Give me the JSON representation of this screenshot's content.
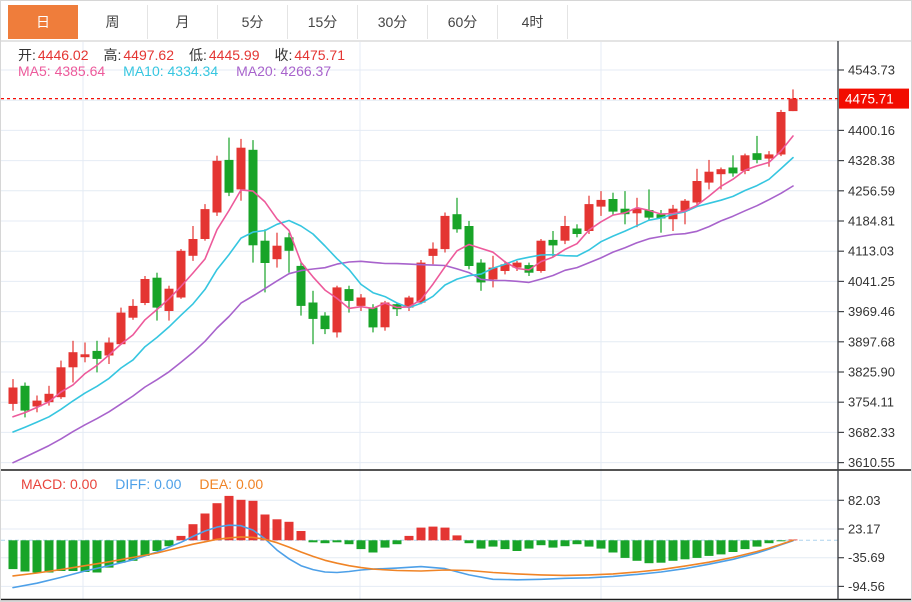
{
  "tabs": [
    {
      "label": "日",
      "name": "tab-day",
      "active": true
    },
    {
      "label": "周",
      "name": "tab-week",
      "active": false
    },
    {
      "label": "月",
      "name": "tab-month",
      "active": false
    },
    {
      "label": "5分",
      "name": "tab-5min",
      "active": false
    },
    {
      "label": "15分",
      "name": "tab-15min",
      "active": false
    },
    {
      "label": "30分",
      "name": "tab-30min",
      "active": false
    },
    {
      "label": "60分",
      "name": "tab-60min",
      "active": false
    },
    {
      "label": "4时",
      "name": "tab-4hour",
      "active": false
    }
  ],
  "ohlc": [
    {
      "label": "开:",
      "value": "4446.02"
    },
    {
      "label": "高:",
      "value": "4497.62"
    },
    {
      "label": "低:",
      "value": "4445.99"
    },
    {
      "label": "收:",
      "value": "4475.71"
    }
  ],
  "ma_legend": [
    {
      "text": "MA5: 4385.64",
      "color": "#ed5a9b"
    },
    {
      "text": "MA10: 4334.34",
      "color": "#36c6e0"
    },
    {
      "text": "MA20: 4266.37",
      "color": "#a863cc"
    }
  ],
  "macd_legend": [
    {
      "text": "MACD: 0.00",
      "color": "#e8443c"
    },
    {
      "text": "DIFF: 0.00",
      "color": "#4da0e8"
    },
    {
      "text": "DEA: 0.00",
      "color": "#f08426"
    }
  ],
  "last_price_label": "4475.71",
  "colors": {
    "up": "#e43532",
    "down": "#18a428",
    "ma5": "#ed5a9b",
    "ma10": "#36c6e0",
    "ma20": "#a863cc",
    "diff": "#4da0e8",
    "dea": "#f08426",
    "grid": "#e4ebf4",
    "axis_line": "#42454a",
    "panel_border": "#1c1c1c",
    "tab_active_bg": "#ef7d3b",
    "value_red": "#e43532",
    "label_text": "#333333",
    "zero_line": "#aed4ee",
    "price_tag_bg": "#f20c00",
    "current_price_line": "#f50d05"
  },
  "chart_data": [
    {
      "type": "candlestick",
      "title": "日K线 (daily candles, OHLC)",
      "y_axis_ticks": [
        4543.73,
        4400.16,
        4328.38,
        4256.59,
        4184.81,
        4113.03,
        4041.25,
        3969.46,
        3897.68,
        3825.9,
        3754.11,
        3682.33,
        3610.55
      ],
      "y_axis_hidden_tick": 4471.94,
      "current_price": 4475.71,
      "grid": true,
      "legend_position": "top-left",
      "ma_periods": [
        5,
        10,
        20
      ],
      "ma_last_values": {
        "ma5": 4385.64,
        "ma10": 4334.34,
        "ma20": 4266.37
      },
      "prehistory_closes_for_ma": [
        3455,
        3470,
        3485,
        3500,
        3515,
        3530,
        3545,
        3560,
        3575,
        3590,
        3605,
        3620,
        3635,
        3648,
        3660,
        3672,
        3684,
        3696,
        3708,
        3720
      ],
      "candles_ohlc": [
        [
          3750,
          3809,
          3734,
          3789
        ],
        [
          3793,
          3801,
          3718,
          3734
        ],
        [
          3744,
          3770,
          3730,
          3758
        ],
        [
          3754,
          3793,
          3746,
          3774
        ],
        [
          3766,
          3853,
          3762,
          3837
        ],
        [
          3837,
          3900,
          3801,
          3873
        ],
        [
          3861,
          3896,
          3849,
          3868
        ],
        [
          3876,
          3900,
          3825,
          3857
        ],
        [
          3865,
          3908,
          3845,
          3896
        ],
        [
          3892,
          3979,
          3890,
          3967
        ],
        [
          3955,
          3999,
          3950,
          3983
        ],
        [
          3990,
          4054,
          3985,
          4047
        ],
        [
          4050,
          4062,
          3948,
          3979
        ],
        [
          3971,
          4031,
          3948,
          4024
        ],
        [
          4003,
          4118,
          4000,
          4114
        ],
        [
          4102,
          4173,
          4090,
          4142
        ],
        [
          4142,
          4225,
          4138,
          4213
        ],
        [
          4205,
          4340,
          4197,
          4328
        ],
        [
          4330,
          4383,
          4244,
          4252
        ],
        [
          4260,
          4380,
          4233,
          4359
        ],
        [
          4354,
          4377,
          4086,
          4127
        ],
        [
          4138,
          4165,
          4015,
          4085
        ],
        [
          4094,
          4157,
          4074,
          4126
        ],
        [
          4146,
          4157,
          4062,
          4114
        ],
        [
          4078,
          4086,
          3960,
          3983
        ],
        [
          3991,
          4019,
          3892,
          3952
        ],
        [
          3960,
          3968,
          3916,
          3928
        ],
        [
          3920,
          4031,
          3908,
          4027
        ],
        [
          4023,
          4031,
          3967,
          3995
        ],
        [
          3983,
          4011,
          3971,
          4003
        ],
        [
          3979,
          3987,
          3920,
          3932
        ],
        [
          3932,
          3995,
          3924,
          3991
        ],
        [
          3987,
          3991,
          3959,
          3975
        ],
        [
          3979,
          4007,
          3971,
          4003
        ],
        [
          3991,
          4092,
          3987,
          4086
        ],
        [
          4102,
          4134,
          4082,
          4119
        ],
        [
          4118,
          4205,
          4110,
          4197
        ],
        [
          4201,
          4240,
          4157,
          4165
        ],
        [
          4173,
          4185,
          4070,
          4078
        ],
        [
          4086,
          4094,
          4019,
          4039
        ],
        [
          4046,
          4102,
          4027,
          4074
        ],
        [
          4066,
          4090,
          4058,
          4082
        ],
        [
          4074,
          4090,
          4066,
          4086
        ],
        [
          4080,
          4086,
          4054,
          4062
        ],
        [
          4066,
          4142,
          4062,
          4138
        ],
        [
          4140,
          4161,
          4098,
          4127
        ],
        [
          4138,
          4197,
          4130,
          4173
        ],
        [
          4167,
          4177,
          4146,
          4154
        ],
        [
          4161,
          4245,
          4154,
          4225
        ],
        [
          4219,
          4256,
          4197,
          4235
        ],
        [
          4237,
          4252,
          4199,
          4207
        ],
        [
          4214,
          4256,
          4177,
          4201
        ],
        [
          4203,
          4240,
          4170,
          4214
        ],
        [
          4211,
          4260,
          4185,
          4193
        ],
        [
          4201,
          4211,
          4157,
          4191
        ],
        [
          4189,
          4223,
          4161,
          4214
        ],
        [
          4209,
          4237,
          4177,
          4233
        ],
        [
          4229,
          4309,
          4221,
          4280
        ],
        [
          4276,
          4330,
          4260,
          4302
        ],
        [
          4296,
          4312,
          4260,
          4308
        ],
        [
          4312,
          4341,
          4290,
          4298
        ],
        [
          4304,
          4345,
          4296,
          4341
        ],
        [
          4346,
          4387,
          4322,
          4330
        ],
        [
          4333,
          4351,
          4314,
          4343
        ],
        [
          4343,
          4449,
          4339,
          4444
        ],
        [
          4446.02,
          4497.62,
          4445.99,
          4475.71
        ]
      ]
    },
    {
      "type": "bar",
      "title": "MACD",
      "y_axis_ticks": [
        82.03,
        23.17,
        -35.69,
        -94.56
      ],
      "zero_line": 0,
      "histogram": [
        -59,
        -64,
        -66,
        -66,
        -63,
        -63,
        -65,
        -66,
        -56,
        -46,
        -42,
        -32,
        -22,
        -12,
        9,
        33,
        55,
        76,
        91,
        83,
        81,
        53,
        43,
        38,
        19,
        -4,
        -6,
        -4,
        -8,
        -18,
        -25,
        -15,
        -8,
        9,
        26,
        28,
        26,
        10,
        -6,
        -17,
        -13,
        -18,
        -22,
        -17,
        -10,
        -15,
        -12,
        -8,
        -13,
        -17,
        -25,
        -36,
        -42,
        -47,
        -46,
        -42,
        -39,
        -36,
        -32,
        -29,
        -24,
        -18,
        -13,
        -6,
        -2,
        0.5
      ],
      "diff_points": [
        [
          0,
          -97
        ],
        [
          2,
          -88
        ],
        [
          4,
          -76
        ],
        [
          6,
          -63
        ],
        [
          8,
          -52
        ],
        [
          10,
          -40
        ],
        [
          12,
          -24
        ],
        [
          14,
          -4
        ],
        [
          15,
          8
        ],
        [
          16,
          19
        ],
        [
          17,
          27
        ],
        [
          18,
          31
        ],
        [
          19,
          30
        ],
        [
          20,
          21
        ],
        [
          21,
          3
        ],
        [
          22,
          -20
        ],
        [
          23,
          -38
        ],
        [
          24,
          -52
        ],
        [
          25,
          -60
        ],
        [
          26,
          -65
        ],
        [
          27,
          -66
        ],
        [
          28,
          -64
        ],
        [
          29,
          -61
        ],
        [
          30,
          -59
        ],
        [
          32,
          -57
        ],
        [
          34,
          -54
        ],
        [
          36,
          -58
        ],
        [
          38,
          -71
        ],
        [
          40,
          -80
        ],
        [
          42,
          -81
        ],
        [
          44,
          -80
        ],
        [
          46,
          -78
        ],
        [
          48,
          -77
        ],
        [
          50,
          -74
        ],
        [
          52,
          -70
        ],
        [
          54,
          -65
        ],
        [
          56,
          -58
        ],
        [
          58,
          -49
        ],
        [
          60,
          -39
        ],
        [
          62,
          -26
        ],
        [
          63,
          -18
        ],
        [
          64,
          -9
        ],
        [
          65,
          -1
        ]
      ],
      "dea_points": [
        [
          0,
          -73
        ],
        [
          2,
          -67
        ],
        [
          4,
          -60
        ],
        [
          6,
          -52
        ],
        [
          8,
          -44
        ],
        [
          10,
          -35
        ],
        [
          12,
          -26
        ],
        [
          14,
          -14
        ],
        [
          15,
          -8
        ],
        [
          16,
          -3
        ],
        [
          17,
          2
        ],
        [
          18,
          5
        ],
        [
          19,
          7
        ],
        [
          20,
          6
        ],
        [
          21,
          2
        ],
        [
          22,
          -5
        ],
        [
          23,
          -14
        ],
        [
          24,
          -24
        ],
        [
          25,
          -33
        ],
        [
          26,
          -41
        ],
        [
          27,
          -47
        ],
        [
          28,
          -52
        ],
        [
          29,
          -56
        ],
        [
          30,
          -59
        ],
        [
          32,
          -62
        ],
        [
          34,
          -63
        ],
        [
          36,
          -61
        ],
        [
          38,
          -62
        ],
        [
          40,
          -66
        ],
        [
          42,
          -69
        ],
        [
          44,
          -71
        ],
        [
          46,
          -72
        ],
        [
          48,
          -71
        ],
        [
          50,
          -69
        ],
        [
          52,
          -65
        ],
        [
          54,
          -60
        ],
        [
          56,
          -53
        ],
        [
          58,
          -45
        ],
        [
          60,
          -35
        ],
        [
          62,
          -23
        ],
        [
          63,
          -16
        ],
        [
          64,
          -8
        ],
        [
          65,
          0
        ]
      ]
    }
  ]
}
